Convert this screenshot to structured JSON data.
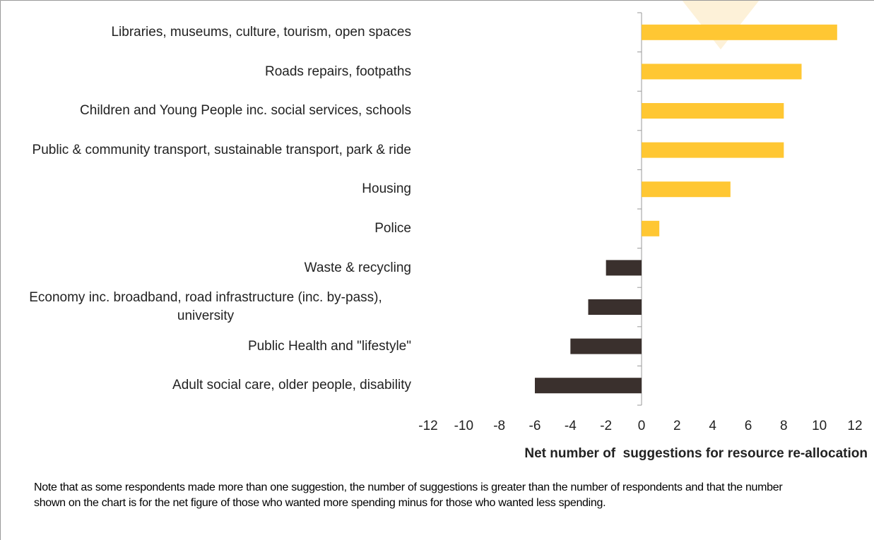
{
  "chart_data": {
    "type": "bar",
    "orientation": "horizontal",
    "categories": [
      "Libraries, museums, culture, tourism, open spaces",
      "Roads repairs, footpaths",
      "Children and Young People inc. social services, schools",
      "Public & community transport, sustainable transport, park & ride",
      "Housing",
      "Police",
      "Waste & recycling",
      "Economy inc. broadband, road infrastructure (inc. by-pass), university",
      "Public Health and \"lifestyle\"",
      "Adult social care, older people, disability"
    ],
    "values": [
      11,
      9,
      8,
      8,
      5,
      1,
      -2,
      -3,
      -4,
      -6
    ],
    "positive_color": "#ffc733",
    "negative_color": "#3a302d",
    "xlim": [
      -12,
      12
    ],
    "xticks": [
      -12,
      -10,
      -8,
      -6,
      -4,
      -2,
      0,
      2,
      4,
      6,
      8,
      10,
      12
    ],
    "xlabel": "Net number of  suggestions for resource re-allocation",
    "note": "Note that as some respondents made more than one suggestion, the number of suggestions is greater than the number of respondents and that the number shown on the chart is for the net figure of those who wanted more spending minus for those who wanted less spending."
  }
}
